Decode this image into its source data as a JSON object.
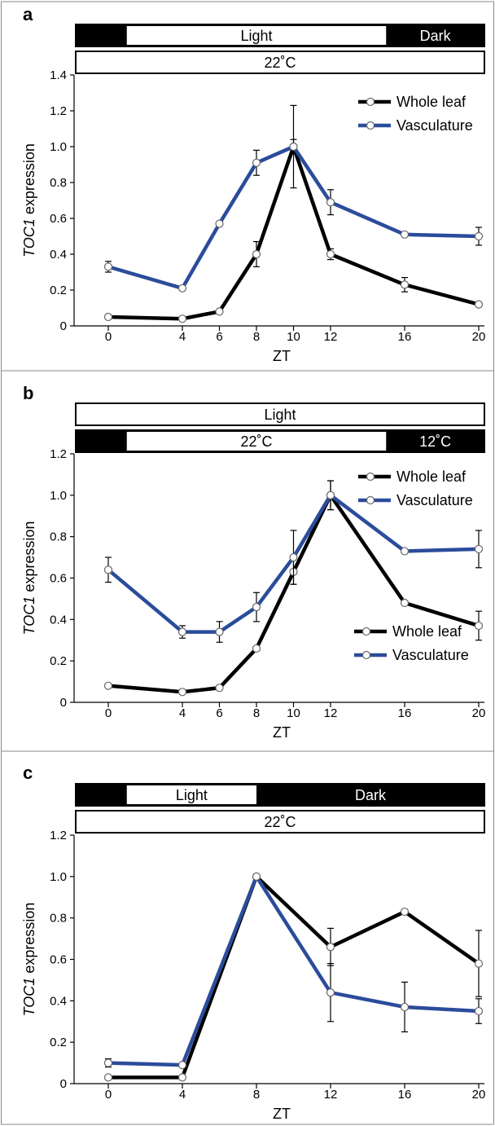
{
  "colors": {
    "whole_leaf": "#000000",
    "vasculature": "#2b4c9b",
    "panel_border": "#888888",
    "bar_dark": "#000000",
    "bar_light": "#ffffff"
  },
  "chart_data": [
    {
      "type": "line",
      "panel_label": "a",
      "light_bar": {
        "light": "Light",
        "dark": "Dark",
        "light_range": [
          1,
          15
        ],
        "full_range": [
          0,
          21
        ]
      },
      "temp_bar": {
        "single": "22˚C"
      },
      "xlabel": "ZT",
      "ylabel": "TOC1 expression",
      "ylabel_italic": "TOC1",
      "ylabel_rest": " expression",
      "xlim": [
        -1,
        21
      ],
      "ylim": [
        0,
        1.4
      ],
      "x_ticks": [
        0,
        4,
        6,
        8,
        10,
        12,
        16,
        20
      ],
      "y_ticks": [
        "0",
        "0.2",
        "0.4",
        "0.6",
        "0.8",
        "1.0",
        "1.2",
        "1.4"
      ],
      "legend_position": "top-right",
      "series": [
        {
          "name": "Whole leaf",
          "color": "#000000",
          "x": [
            0,
            4,
            6,
            8,
            10,
            12,
            16,
            20
          ],
          "y": [
            0.05,
            0.04,
            0.08,
            0.4,
            1.0,
            0.4,
            0.23,
            0.12
          ],
          "err": [
            0.0,
            0.0,
            0.0,
            0.07,
            0.23,
            0.03,
            0.04,
            0.0
          ]
        },
        {
          "name": "Vasculature",
          "color": "#2b4c9b",
          "x": [
            0,
            4,
            6,
            8,
            10,
            12,
            16,
            20
          ],
          "y": [
            0.33,
            0.21,
            0.57,
            0.91,
            1.0,
            0.69,
            0.51,
            0.5
          ],
          "err": [
            0.03,
            0.0,
            0.0,
            0.07,
            0.04,
            0.07,
            0.0,
            0.05
          ]
        }
      ]
    },
    {
      "type": "line",
      "panel_label": "b",
      "light_bar": {
        "single": "Light"
      },
      "temp_bar": {
        "light": "22˚C",
        "dark": "12˚C",
        "light_range": [
          1,
          15
        ],
        "full_range": [
          0,
          21
        ]
      },
      "xlabel": "ZT",
      "ylabel": "TOC1 expression",
      "ylabel_italic": "TOC1",
      "ylabel_rest": " expression",
      "xlim": [
        -1,
        21
      ],
      "ylim": [
        0,
        1.2
      ],
      "x_ticks": [
        0,
        4,
        6,
        8,
        10,
        12,
        16,
        20
      ],
      "y_ticks": [
        "0",
        "0.2",
        "0.4",
        "0.6",
        "0.8",
        "1.0",
        "1.2"
      ],
      "legend_position": "top-right",
      "series": [
        {
          "name": "Whole leaf",
          "color": "#000000",
          "x": [
            0,
            4,
            6,
            8,
            10,
            12,
            16,
            20
          ],
          "y": [
            0.08,
            0.05,
            0.07,
            0.26,
            0.63,
            1.0,
            0.48,
            0.37
          ],
          "err": [
            0.0,
            0.0,
            0.0,
            0.0,
            0.06,
            0.07,
            0.0,
            0.07
          ]
        },
        {
          "name": "Vasculature",
          "color": "#2b4c9b",
          "x": [
            0,
            4,
            6,
            8,
            10,
            12,
            16,
            20
          ],
          "y": [
            0.64,
            0.34,
            0.34,
            0.46,
            0.7,
            1.0,
            0.73,
            0.74
          ],
          "err": [
            0.06,
            0.03,
            0.05,
            0.07,
            0.13,
            0.07,
            0.0,
            0.09
          ]
        }
      ]
    },
    {
      "type": "line",
      "panel_label": "c",
      "light_bar": {
        "light": "Light",
        "dark": "Dark",
        "light_range": [
          1,
          8
        ],
        "full_range": [
          0,
          21
        ]
      },
      "temp_bar": {
        "single": "22˚C"
      },
      "xlabel": "ZT",
      "ylabel": "TOC1 expression",
      "ylabel_italic": "TOC1",
      "ylabel_rest": " expression",
      "xlim": [
        -1,
        21
      ],
      "ylim": [
        0,
        1.2
      ],
      "x_ticks": [
        0,
        4,
        8,
        12,
        16,
        20
      ],
      "y_ticks": [
        "0",
        "0.2",
        "0.4",
        "0.6",
        "0.8",
        "1.0",
        "1.2"
      ],
      "legend_position": "top-right",
      "series": [
        {
          "name": "Whole leaf",
          "color": "#000000",
          "x": [
            0,
            4,
            8,
            12,
            16,
            20
          ],
          "y": [
            0.03,
            0.03,
            1.0,
            0.66,
            0.83,
            0.58
          ],
          "err": [
            0.0,
            0.0,
            0.0,
            0.09,
            0.0,
            0.16
          ]
        },
        {
          "name": "Vasculature",
          "color": "#2b4c9b",
          "x": [
            0,
            4,
            8,
            12,
            16,
            20
          ],
          "y": [
            0.1,
            0.09,
            1.0,
            0.44,
            0.37,
            0.35
          ],
          "err": [
            0.02,
            0.0,
            0.0,
            0.14,
            0.12,
            0.06
          ]
        }
      ]
    }
  ]
}
